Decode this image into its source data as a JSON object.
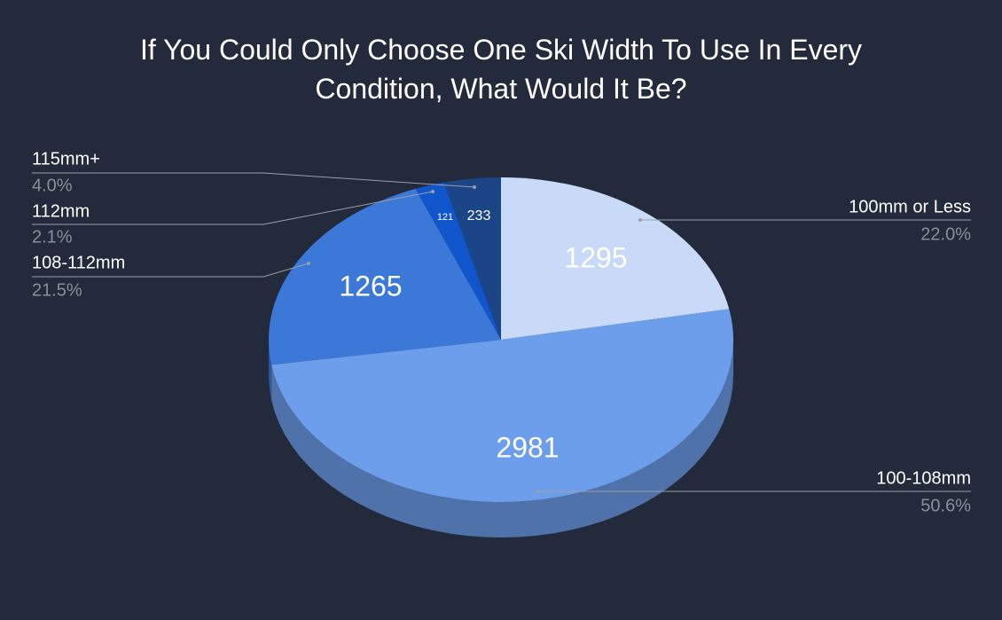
{
  "chart_data": {
    "type": "pie",
    "three_d": true,
    "title": "If You Could Only Choose One Ski Width To Use In Every Condition, What Would It Be?",
    "categories": [
      "100mm or Less",
      "100-108mm",
      "108-112mm",
      "112mm",
      "115mm+"
    ],
    "values": [
      1295,
      2981,
      1265,
      121,
      233
    ],
    "percent_labels": [
      "22.0%",
      "50.6%",
      "21.5%",
      "2.1%",
      "4.0%"
    ],
    "colors": [
      "#c9daf8",
      "#6d9eeb",
      "#3c78d8",
      "#1155cc",
      "#1c4587"
    ]
  }
}
